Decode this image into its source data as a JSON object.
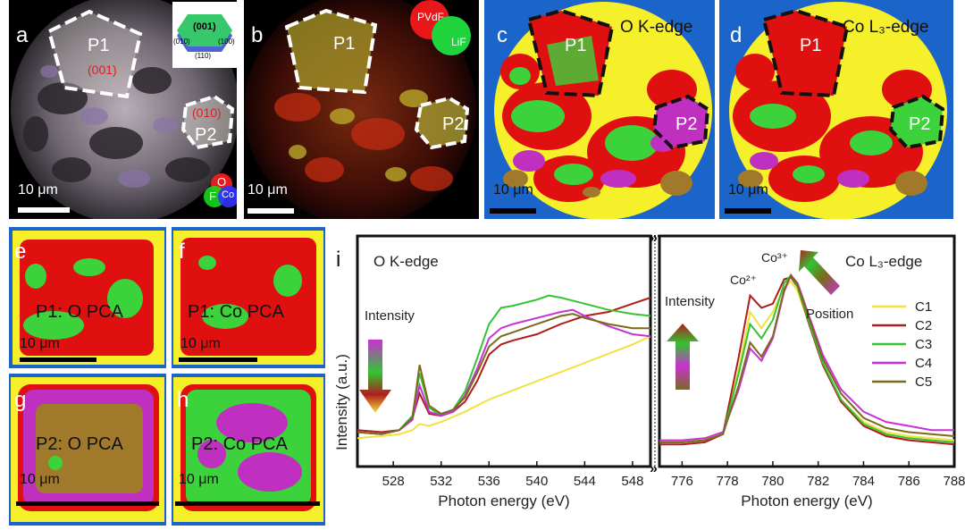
{
  "figure": {
    "panels": {
      "a": {
        "label": "a",
        "regions": [
          "P1",
          "P2"
        ],
        "facets": [
          "(001)",
          "(010)"
        ],
        "crystal_faces": [
          "(001)",
          "(010)",
          "(110)",
          "(100)"
        ],
        "rgb_legend": [
          "O",
          "F",
          "Co"
        ],
        "scalebar": "10 μm"
      },
      "b": {
        "label": "b",
        "regions": [
          "P1",
          "P2"
        ],
        "legend": [
          "PVdF",
          "LiF"
        ],
        "scalebar": "10 μm"
      },
      "c": {
        "label": "c",
        "edge": "O K-edge",
        "regions": [
          "P1",
          "P2"
        ],
        "scalebar": "10 μm"
      },
      "d": {
        "label": "d",
        "edge": "Co L₃-edge",
        "regions": [
          "P1",
          "P2"
        ],
        "scalebar": "10 μm"
      },
      "e": {
        "label": "e",
        "title": "P1: O PCA",
        "scalebar": "10 μm"
      },
      "f": {
        "label": "f",
        "title": "P1: Co PCA",
        "scalebar": "10 μm"
      },
      "g": {
        "label": "g",
        "title": "P2: O PCA",
        "scalebar": "10 μm"
      },
      "h": {
        "label": "h",
        "title": "P2: Co PCA",
        "scalebar": "10 μm"
      }
    },
    "colors": {
      "C1": "#f2e23a",
      "C2": "#b01d1d",
      "C3": "#33c333",
      "C4": "#c832d2",
      "C5": "#7a6a1c",
      "map_bg": "#1b64c9",
      "map_yellow": "#f5f02a",
      "map_red": "#e01010",
      "map_green": "#3cd23c",
      "map_magenta": "#c030c0",
      "map_brown": "#a07a2a"
    }
  },
  "chart_data": {
    "label": "i",
    "type": "line",
    "ylabel": "Intensity (a.u.)",
    "panels": [
      {
        "title": "O K-edge",
        "xlabel": "Photon energy (eV)",
        "xlim": [
          525,
          549.5
        ],
        "xticks": [
          528,
          532,
          536,
          540,
          544,
          548
        ],
        "annotation": "Intensity",
        "series": [
          {
            "name": "C1",
            "x": [
              525,
              527,
              528.5,
              529.6,
              530.2,
              531,
              532,
              534,
              536,
              540,
              544,
              548,
              549.5
            ],
            "y": [
              0.06,
              0.07,
              0.08,
              0.1,
              0.13,
              0.12,
              0.14,
              0.19,
              0.25,
              0.34,
              0.43,
              0.52,
              0.56
            ]
          },
          {
            "name": "C2",
            "x": [
              525,
              527,
              528.5,
              529.6,
              530.2,
              531,
              532,
              533,
              534,
              535,
              536,
              537,
              538,
              540,
              542,
              544,
              546,
              548,
              549.5
            ],
            "y": [
              0.1,
              0.09,
              0.1,
              0.16,
              0.28,
              0.18,
              0.17,
              0.19,
              0.24,
              0.34,
              0.47,
              0.52,
              0.54,
              0.57,
              0.62,
              0.66,
              0.68,
              0.72,
              0.75
            ]
          },
          {
            "name": "C3",
            "x": [
              525,
              527,
              528.5,
              529.6,
              530.2,
              531,
              532,
              533,
              534,
              535,
              536,
              537,
              538,
              540,
              541,
              542,
              544,
              546,
              548,
              549.5
            ],
            "y": [
              0.09,
              0.08,
              0.1,
              0.17,
              0.38,
              0.21,
              0.17,
              0.2,
              0.29,
              0.45,
              0.62,
              0.7,
              0.71,
              0.74,
              0.76,
              0.75,
              0.72,
              0.69,
              0.67,
              0.66
            ]
          },
          {
            "name": "C4",
            "x": [
              525,
              527,
              528.5,
              529.6,
              530.2,
              531,
              532,
              533,
              534,
              535,
              536,
              537,
              538,
              540,
              542,
              543,
              544,
              546,
              548,
              549.5
            ],
            "y": [
              0.09,
              0.08,
              0.1,
              0.15,
              0.32,
              0.19,
              0.17,
              0.19,
              0.27,
              0.4,
              0.55,
              0.6,
              0.62,
              0.65,
              0.68,
              0.69,
              0.66,
              0.61,
              0.57,
              0.56
            ]
          },
          {
            "name": "C5",
            "x": [
              525,
              527,
              528.5,
              529.6,
              530.2,
              531,
              532,
              533,
              534,
              535,
              536,
              537,
              538,
              540,
              542,
              543,
              544,
              546,
              548,
              549.5
            ],
            "y": [
              0.09,
              0.08,
              0.1,
              0.16,
              0.42,
              0.22,
              0.18,
              0.2,
              0.26,
              0.38,
              0.51,
              0.56,
              0.58,
              0.62,
              0.66,
              0.67,
              0.65,
              0.62,
              0.6,
              0.6
            ]
          }
        ]
      },
      {
        "title": "Co L₃-edge",
        "xlabel": "Photon energy (eV)",
        "xlim": [
          775,
          788
        ],
        "xticks": [
          776,
          778,
          780,
          782,
          784,
          786,
          788
        ],
        "annotations": [
          "Co²⁺",
          "Co³⁺",
          "Intensity",
          "Position"
        ],
        "series": [
          {
            "name": "C1",
            "x": [
              775,
              776,
              777,
              777.8,
              778.5,
              779,
              779.5,
              780,
              780.5,
              780.8,
              781.1,
              781.6,
              782.2,
              783,
              784,
              785,
              786,
              787,
              788
            ],
            "y": [
              0.04,
              0.04,
              0.05,
              0.08,
              0.4,
              0.68,
              0.6,
              0.68,
              0.8,
              0.83,
              0.78,
              0.62,
              0.42,
              0.25,
              0.14,
              0.09,
              0.07,
              0.06,
              0.05
            ]
          },
          {
            "name": "C2",
            "x": [
              775,
              776,
              777,
              777.8,
              778.5,
              779,
              779.5,
              780,
              780.5,
              780.8,
              781.1,
              781.6,
              782.2,
              783,
              784,
              785,
              786,
              787,
              788
            ],
            "y": [
              0.03,
              0.03,
              0.04,
              0.08,
              0.46,
              0.76,
              0.7,
              0.72,
              0.84,
              0.85,
              0.8,
              0.62,
              0.42,
              0.24,
              0.12,
              0.07,
              0.05,
              0.04,
              0.03
            ]
          },
          {
            "name": "C3",
            "x": [
              775,
              776,
              777,
              777.8,
              778.5,
              779,
              779.5,
              780,
              780.5,
              780.8,
              781.1,
              781.6,
              782.2,
              783,
              784,
              785,
              786,
              787,
              788
            ],
            "y": [
              0.04,
              0.04,
              0.05,
              0.08,
              0.38,
              0.62,
              0.55,
              0.64,
              0.82,
              0.86,
              0.8,
              0.63,
              0.43,
              0.25,
              0.13,
              0.08,
              0.06,
              0.05,
              0.04
            ]
          },
          {
            "name": "C4",
            "x": [
              775,
              776,
              777,
              777.8,
              778.5,
              779,
              779.5,
              780,
              780.5,
              780.8,
              781.1,
              781.6,
              782.2,
              783,
              784,
              785,
              786,
              787,
              788
            ],
            "y": [
              0.05,
              0.05,
              0.06,
              0.09,
              0.3,
              0.5,
              0.44,
              0.55,
              0.78,
              0.86,
              0.82,
              0.66,
              0.47,
              0.3,
              0.19,
              0.14,
              0.12,
              0.1,
              0.1
            ]
          },
          {
            "name": "C5",
            "x": [
              775,
              776,
              777,
              777.8,
              778.5,
              779,
              779.5,
              780,
              780.5,
              780.8,
              781.1,
              781.6,
              782.2,
              783,
              784,
              785,
              786,
              787,
              788
            ],
            "y": [
              0.04,
              0.04,
              0.05,
              0.08,
              0.32,
              0.53,
              0.46,
              0.56,
              0.79,
              0.86,
              0.81,
              0.65,
              0.45,
              0.28,
              0.16,
              0.11,
              0.09,
              0.08,
              0.07
            ]
          }
        ]
      }
    ],
    "legend": [
      "C1",
      "C2",
      "C3",
      "C4",
      "C5"
    ]
  }
}
